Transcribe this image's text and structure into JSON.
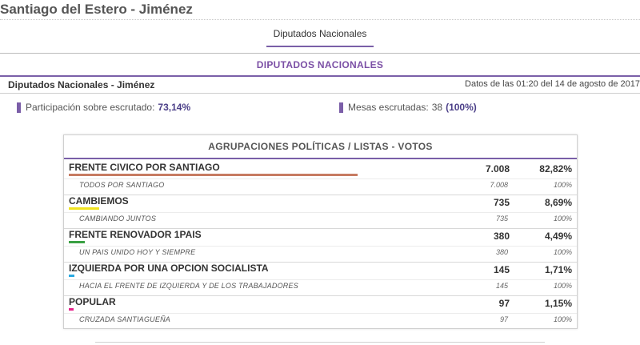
{
  "page": {
    "title": "Santiago del Estero - Jiménez"
  },
  "tabs": [
    {
      "label": "Diputados Nacionales"
    }
  ],
  "section": {
    "heading": "DIPUTADOS NACIONALES",
    "subtitle": "Diputados Nacionales - Jiménez",
    "timestamp": "Datos de las 01:20 del 14 de agosto de 2017"
  },
  "stats": {
    "participation_label": "Participación sobre escrutado:",
    "participation_value": "73,14%",
    "tables_label": "Mesas escrutadas:",
    "tables_count": "38",
    "tables_pct": "(100%)"
  },
  "results": {
    "header": "AGRUPACIONES POLÍTICAS / LISTAS - VOTOS",
    "parties": [
      {
        "name": "FRENTE CIVICO POR SANTIAGO",
        "votes": "7.008",
        "pct": "82,82%",
        "share": 0.8282,
        "color": "#c77b62",
        "list": {
          "name": "TODOS POR SANTIAGO",
          "votes": "7.008",
          "pct": "100%"
        }
      },
      {
        "name": "CAMBIEMOS",
        "votes": "735",
        "pct": "8,69%",
        "share": 0.0869,
        "color": "#f1e31f",
        "list": {
          "name": "CAMBIANDO JUNTOS",
          "votes": "735",
          "pct": "100%"
        }
      },
      {
        "name": "FRENTE RENOVADOR 1PAIS",
        "votes": "380",
        "pct": "4,49%",
        "share": 0.0449,
        "color": "#3aa043",
        "list": {
          "name": "UN PAIS UNIDO HOY Y SIEMPRE",
          "votes": "380",
          "pct": "100%"
        }
      },
      {
        "name": "IZQUIERDA POR UNA OPCION SOCIALISTA",
        "votes": "145",
        "pct": "1,71%",
        "share": 0.0171,
        "color": "#29a9e1",
        "list": {
          "name": "HACIA EL FRENTE DE IZQUIERDA Y DE LOS TRABAJADORES",
          "votes": "145",
          "pct": "100%"
        }
      },
      {
        "name": "POPULAR",
        "votes": "97",
        "pct": "1,15%",
        "share": 0.0115,
        "color": "#e6208a",
        "list": {
          "name": "CRUZADA SANTIAGUEÑA",
          "votes": "97",
          "pct": "100%"
        }
      }
    ]
  }
}
